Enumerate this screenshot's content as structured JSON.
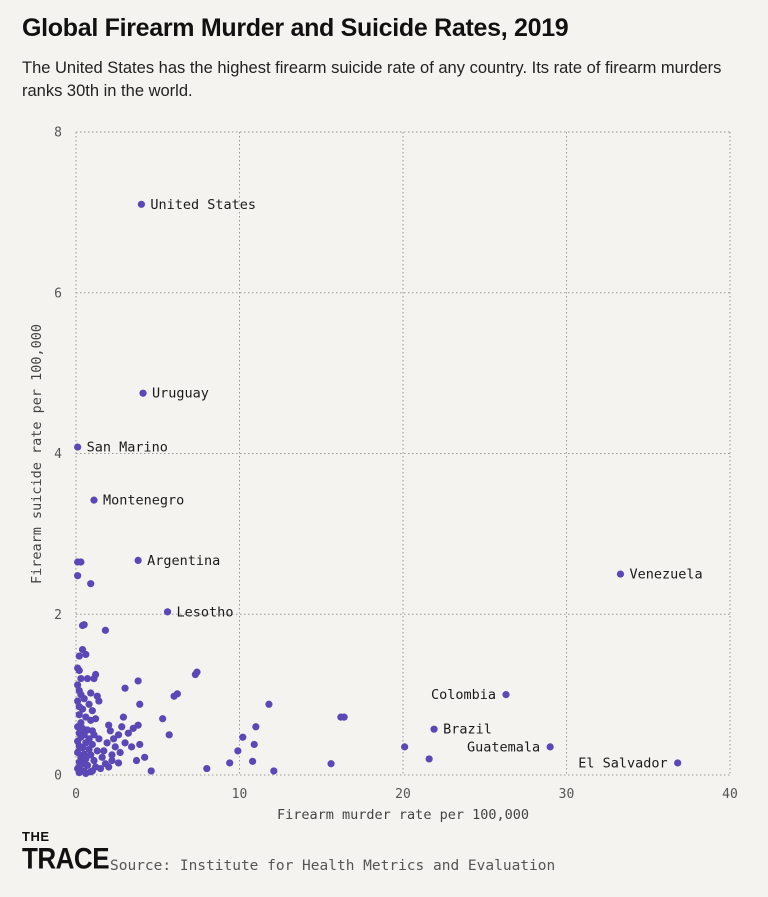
{
  "header": {
    "title": "Global Firearm Murder and Suicide Rates, 2019",
    "subtitle": "The United States has the highest firearm suicide rate of any country. Its rate of firearm murders ranks 30th in the world."
  },
  "footer": {
    "logo_top": "THE",
    "logo_bottom": "TRACE",
    "source": "Source: Institute for Health Metrics and Evaluation"
  },
  "colors": {
    "point": "#5b47b5",
    "grid": "#9a9a9a",
    "background": "#f4f3ef"
  },
  "chart_data": {
    "type": "scatter",
    "xlabel": "Firearm murder rate per 100,000",
    "ylabel": "Firearm suicide rate per 100,000",
    "xlim": [
      0,
      40
    ],
    "ylim": [
      0,
      8
    ],
    "xticks": [
      0,
      10,
      20,
      30,
      40
    ],
    "yticks": [
      0,
      2,
      4,
      6,
      8
    ],
    "grid": "dotted",
    "labeled_points": [
      {
        "label": "United States",
        "x": 4.0,
        "y": 7.1
      },
      {
        "label": "Uruguay",
        "x": 4.1,
        "y": 4.75
      },
      {
        "label": "San Marino",
        "x": 0.1,
        "y": 4.08
      },
      {
        "label": "Montenegro",
        "x": 1.1,
        "y": 3.42
      },
      {
        "label": "Argentina",
        "x": 3.8,
        "y": 2.67
      },
      {
        "label": "Lesotho",
        "x": 5.6,
        "y": 2.03
      },
      {
        "label": "Venezuela",
        "x": 33.3,
        "y": 2.5
      },
      {
        "label": "Colombia",
        "x": 26.3,
        "y": 1.0
      },
      {
        "label": "Brazil",
        "x": 21.9,
        "y": 0.57
      },
      {
        "label": "Guatemala",
        "x": 29.0,
        "y": 0.35
      },
      {
        "label": "El Salvador",
        "x": 36.8,
        "y": 0.15
      }
    ],
    "points": [
      [
        0.1,
        2.65
      ],
      [
        0.3,
        2.65
      ],
      [
        0.1,
        2.48
      ],
      [
        0.9,
        2.38
      ],
      [
        0.5,
        1.87
      ],
      [
        0.4,
        1.86
      ],
      [
        1.8,
        1.8
      ],
      [
        0.4,
        1.56
      ],
      [
        0.6,
        1.5
      ],
      [
        0.2,
        1.48
      ],
      [
        0.1,
        1.33
      ],
      [
        0.2,
        1.3
      ],
      [
        1.2,
        1.25
      ],
      [
        1.1,
        1.2
      ],
      [
        0.7,
        1.2
      ],
      [
        0.3,
        1.2
      ],
      [
        0.1,
        1.12
      ],
      [
        0.2,
        1.05
      ],
      [
        0.3,
        1.0
      ],
      [
        0.9,
        1.02
      ],
      [
        1.3,
        0.98
      ],
      [
        0.5,
        0.95
      ],
      [
        0.1,
        0.92
      ],
      [
        0.8,
        0.88
      ],
      [
        0.2,
        0.85
      ],
      [
        0.4,
        0.82
      ],
      [
        1.0,
        0.8
      ],
      [
        0.2,
        0.75
      ],
      [
        0.6,
        0.72
      ],
      [
        1.2,
        0.7
      ],
      [
        0.9,
        0.68
      ],
      [
        0.3,
        0.65
      ],
      [
        0.1,
        0.6
      ],
      [
        0.4,
        0.58
      ],
      [
        0.7,
        0.56
      ],
      [
        1.0,
        0.55
      ],
      [
        0.2,
        0.52
      ],
      [
        0.5,
        0.5
      ],
      [
        1.1,
        0.5
      ],
      [
        0.3,
        0.47
      ],
      [
        0.8,
        0.45
      ],
      [
        1.4,
        0.45
      ],
      [
        0.1,
        0.42
      ],
      [
        0.6,
        0.4
      ],
      [
        1.0,
        0.38
      ],
      [
        0.2,
        0.36
      ],
      [
        0.4,
        0.34
      ],
      [
        0.8,
        0.32
      ],
      [
        1.3,
        0.3
      ],
      [
        0.1,
        0.28
      ],
      [
        0.5,
        0.26
      ],
      [
        0.9,
        0.25
      ],
      [
        0.3,
        0.22
      ],
      [
        1.6,
        0.22
      ],
      [
        0.6,
        0.2
      ],
      [
        1.1,
        0.18
      ],
      [
        0.2,
        0.16
      ],
      [
        0.4,
        0.14
      ],
      [
        0.7,
        0.12
      ],
      [
        1.2,
        0.1
      ],
      [
        0.1,
        0.08
      ],
      [
        0.3,
        0.06
      ],
      [
        0.5,
        0.05
      ],
      [
        0.9,
        0.04
      ],
      [
        1.5,
        0.08
      ],
      [
        2.0,
        0.1
      ],
      [
        0.2,
        0.03
      ],
      [
        0.6,
        0.02
      ],
      [
        1.0,
        0.05
      ],
      [
        1.8,
        0.14
      ],
      [
        1.7,
        0.3
      ],
      [
        2.2,
        0.25
      ],
      [
        1.9,
        0.4
      ],
      [
        2.4,
        0.35
      ],
      [
        2.1,
        0.55
      ],
      [
        2.6,
        0.5
      ],
      [
        2.0,
        0.62
      ],
      [
        2.3,
        0.45
      ],
      [
        2.8,
        0.6
      ],
      [
        3.0,
        0.4
      ],
      [
        2.9,
        0.72
      ],
      [
        3.2,
        0.52
      ],
      [
        3.5,
        0.58
      ],
      [
        3.8,
        0.62
      ],
      [
        3.4,
        0.35
      ],
      [
        2.7,
        0.28
      ],
      [
        2.2,
        0.18
      ],
      [
        2.6,
        0.15
      ],
      [
        3.7,
        0.18
      ],
      [
        4.2,
        0.22
      ],
      [
        4.6,
        0.05
      ],
      [
        3.0,
        1.08
      ],
      [
        3.8,
        1.17
      ],
      [
        3.9,
        0.88
      ],
      [
        3.9,
        0.38
      ],
      [
        1.4,
        0.92
      ],
      [
        6.0,
        0.98
      ],
      [
        6.2,
        1.01
      ],
      [
        7.3,
        1.25
      ],
      [
        7.4,
        1.28
      ],
      [
        5.3,
        0.7
      ],
      [
        5.7,
        0.5
      ],
      [
        8.0,
        0.08
      ],
      [
        9.4,
        0.15
      ],
      [
        9.9,
        0.3
      ],
      [
        10.2,
        0.47
      ],
      [
        10.8,
        0.17
      ],
      [
        10.9,
        0.38
      ],
      [
        11.0,
        0.6
      ],
      [
        11.8,
        0.88
      ],
      [
        12.1,
        0.05
      ],
      [
        15.6,
        0.14
      ],
      [
        16.2,
        0.72
      ],
      [
        16.4,
        0.72
      ],
      [
        20.1,
        0.35
      ],
      [
        21.6,
        0.2
      ]
    ]
  }
}
